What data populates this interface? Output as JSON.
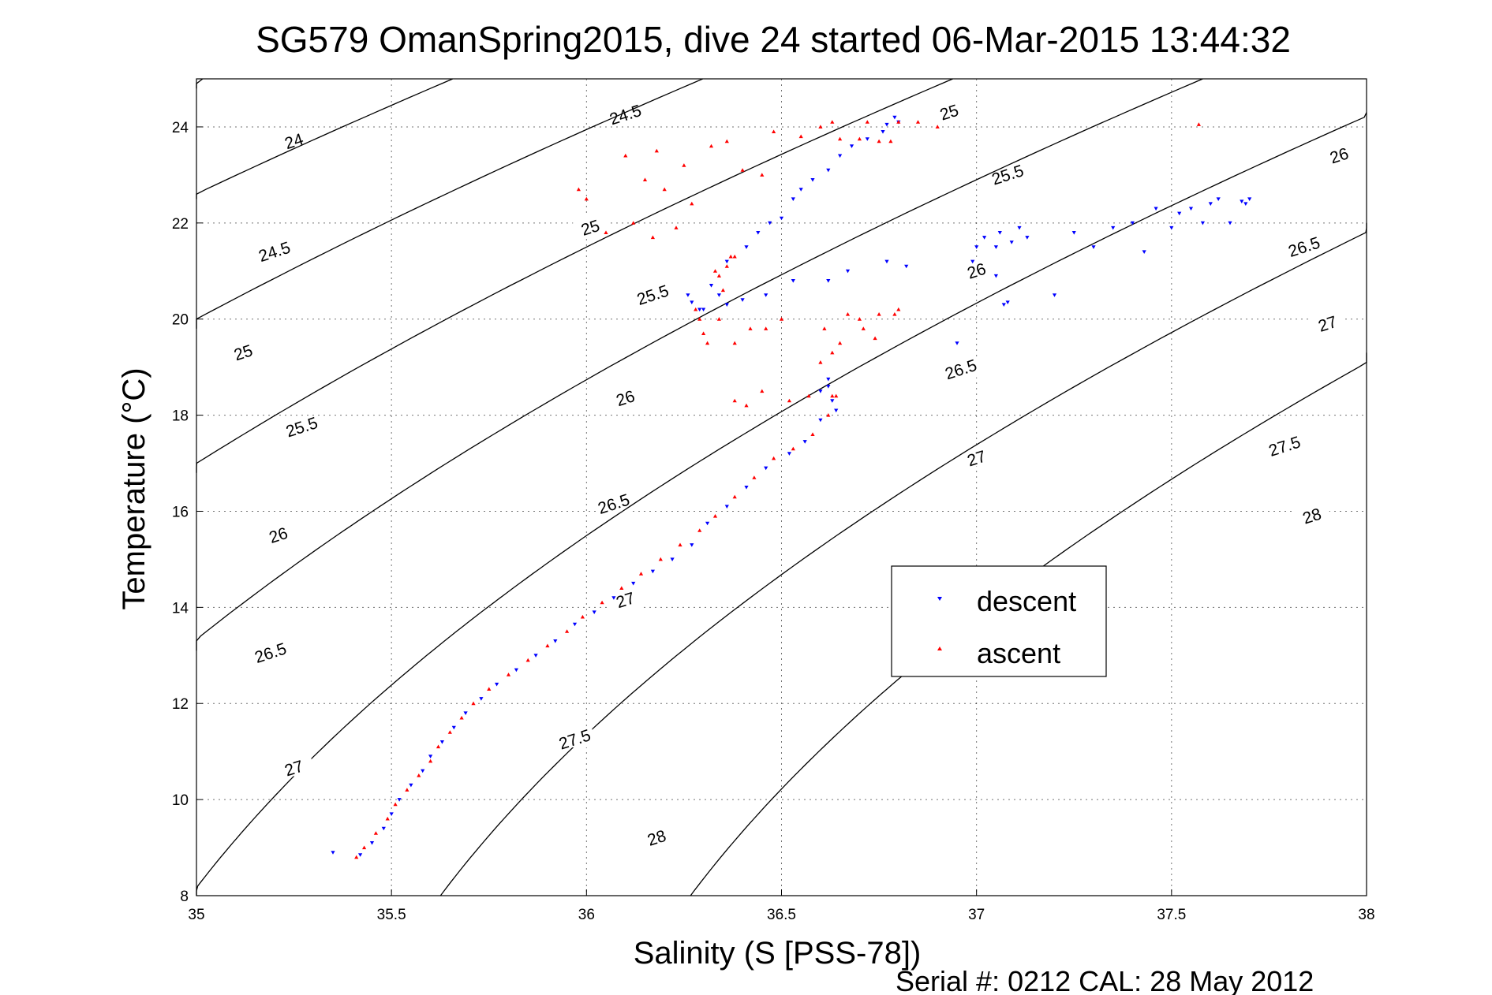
{
  "chart_data": {
    "type": "scatter",
    "title": "SG579 OmanSpring2015, dive 24 started 06-Mar-2015 13:44:32",
    "xlabel": "Salinity (S [PSS-78])",
    "ylabel": "Temperature (°C)",
    "xlim": [
      35,
      38
    ],
    "ylim": [
      8,
      25
    ],
    "xticks": [
      "35",
      "35.5",
      "36",
      "36.5",
      "37",
      "37.5",
      "38"
    ],
    "yticks": [
      "8",
      "10",
      "12",
      "14",
      "16",
      "18",
      "20",
      "22",
      "24"
    ],
    "grid": true,
    "legend_position": "center-right",
    "legend": [
      {
        "label": "descent",
        "marker": "triangle-down",
        "color": "#0000ff"
      },
      {
        "label": "ascent",
        "marker": "triangle-up",
        "color": "#ff0000"
      }
    ],
    "density_contours": {
      "labels": [
        "24",
        "24.5",
        "25",
        "25.5",
        "26",
        "26.5",
        "27",
        "27.5",
        "28"
      ],
      "color": "#000000",
      "note_values": [
        24,
        24.5,
        25,
        25.5,
        26,
        26.5,
        27,
        27.5,
        28
      ]
    },
    "series": [
      {
        "name": "descent",
        "color": "#0000ff",
        "marker": "triangle-down",
        "points": [
          [
            35.35,
            8.9
          ],
          [
            35.42,
            8.85
          ],
          [
            35.45,
            9.1
          ],
          [
            35.48,
            9.4
          ],
          [
            35.5,
            9.7
          ],
          [
            35.52,
            10.0
          ],
          [
            35.55,
            10.3
          ],
          [
            35.58,
            10.6
          ],
          [
            35.6,
            10.9
          ],
          [
            35.63,
            11.2
          ],
          [
            35.66,
            11.5
          ],
          [
            35.69,
            11.8
          ],
          [
            35.73,
            12.1
          ],
          [
            35.77,
            12.4
          ],
          [
            35.82,
            12.7
          ],
          [
            35.87,
            13.0
          ],
          [
            35.92,
            13.3
          ],
          [
            35.97,
            13.65
          ],
          [
            36.02,
            13.9
          ],
          [
            36.07,
            14.2
          ],
          [
            36.12,
            14.5
          ],
          [
            36.17,
            14.75
          ],
          [
            36.22,
            15.0
          ],
          [
            36.27,
            15.3
          ],
          [
            36.31,
            15.75
          ],
          [
            36.36,
            16.1
          ],
          [
            36.41,
            16.5
          ],
          [
            36.46,
            16.9
          ],
          [
            36.52,
            17.2
          ],
          [
            36.56,
            17.45
          ],
          [
            36.6,
            17.9
          ],
          [
            36.63,
            18.3
          ],
          [
            36.62,
            18.6
          ],
          [
            36.64,
            18.1
          ],
          [
            36.6,
            18.5
          ],
          [
            36.62,
            18.75
          ],
          [
            36.26,
            20.5
          ],
          [
            36.27,
            20.35
          ],
          [
            36.29,
            20.2
          ],
          [
            36.3,
            20.2
          ],
          [
            36.36,
            20.3
          ],
          [
            36.4,
            20.4
          ],
          [
            36.46,
            20.5
          ],
          [
            36.34,
            20.5
          ],
          [
            36.32,
            20.7
          ],
          [
            36.36,
            21.2
          ],
          [
            36.41,
            21.5
          ],
          [
            36.44,
            21.8
          ],
          [
            36.47,
            22.0
          ],
          [
            36.5,
            22.1
          ],
          [
            36.53,
            22.5
          ],
          [
            36.55,
            22.7
          ],
          [
            36.58,
            22.9
          ],
          [
            36.62,
            23.1
          ],
          [
            36.65,
            23.4
          ],
          [
            36.68,
            23.6
          ],
          [
            36.72,
            23.75
          ],
          [
            36.76,
            23.9
          ],
          [
            36.8,
            24.1
          ],
          [
            36.79,
            24.2
          ],
          [
            36.77,
            24.05
          ],
          [
            36.53,
            20.8
          ],
          [
            36.62,
            20.8
          ],
          [
            36.67,
            21.0
          ],
          [
            36.77,
            21.2
          ],
          [
            36.82,
            21.1
          ],
          [
            36.95,
            19.5
          ],
          [
            36.99,
            21.2
          ],
          [
            37.0,
            21.5
          ],
          [
            37.02,
            21.7
          ],
          [
            37.05,
            21.5
          ],
          [
            37.06,
            21.8
          ],
          [
            37.09,
            21.6
          ],
          [
            37.11,
            21.9
          ],
          [
            37.13,
            21.7
          ],
          [
            37.2,
            20.5
          ],
          [
            37.07,
            20.3
          ],
          [
            37.05,
            20.9
          ],
          [
            37.08,
            20.35
          ],
          [
            37.25,
            21.8
          ],
          [
            37.3,
            21.5
          ],
          [
            37.35,
            21.9
          ],
          [
            37.4,
            22.0
          ],
          [
            37.43,
            21.4
          ],
          [
            37.46,
            22.3
          ],
          [
            37.5,
            21.9
          ],
          [
            37.52,
            22.2
          ],
          [
            37.55,
            22.3
          ],
          [
            37.58,
            22.0
          ],
          [
            37.6,
            22.4
          ],
          [
            37.65,
            22.0
          ],
          [
            37.68,
            22.45
          ],
          [
            37.7,
            22.5
          ],
          [
            37.69,
            22.4
          ],
          [
            37.62,
            22.5
          ]
        ]
      },
      {
        "name": "ascent",
        "color": "#ff0000",
        "marker": "triangle-up",
        "points": [
          [
            35.41,
            8.8
          ],
          [
            35.43,
            9.0
          ],
          [
            35.46,
            9.3
          ],
          [
            35.49,
            9.6
          ],
          [
            35.51,
            9.9
          ],
          [
            35.54,
            10.2
          ],
          [
            35.57,
            10.5
          ],
          [
            35.6,
            10.8
          ],
          [
            35.62,
            11.1
          ],
          [
            35.65,
            11.4
          ],
          [
            35.68,
            11.7
          ],
          [
            35.71,
            12.0
          ],
          [
            35.75,
            12.3
          ],
          [
            35.8,
            12.6
          ],
          [
            35.85,
            12.9
          ],
          [
            35.9,
            13.2
          ],
          [
            35.95,
            13.5
          ],
          [
            35.99,
            13.8
          ],
          [
            36.04,
            14.1
          ],
          [
            36.09,
            14.4
          ],
          [
            36.14,
            14.7
          ],
          [
            36.19,
            15.0
          ],
          [
            36.24,
            15.3
          ],
          [
            36.29,
            15.6
          ],
          [
            36.33,
            15.9
          ],
          [
            36.38,
            16.3
          ],
          [
            36.43,
            16.7
          ],
          [
            36.48,
            17.1
          ],
          [
            36.53,
            17.3
          ],
          [
            36.58,
            17.6
          ],
          [
            36.62,
            18.0
          ],
          [
            36.64,
            18.4
          ],
          [
            36.38,
            18.3
          ],
          [
            36.41,
            18.2
          ],
          [
            36.45,
            18.5
          ],
          [
            36.52,
            18.3
          ],
          [
            36.57,
            18.4
          ],
          [
            36.63,
            18.4
          ],
          [
            36.6,
            19.1
          ],
          [
            36.63,
            19.3
          ],
          [
            36.65,
            19.5
          ],
          [
            36.61,
            19.8
          ],
          [
            36.67,
            20.1
          ],
          [
            36.7,
            20.0
          ],
          [
            36.75,
            20.1
          ],
          [
            36.79,
            20.1
          ],
          [
            36.74,
            19.6
          ],
          [
            36.8,
            20.2
          ],
          [
            36.71,
            19.8
          ],
          [
            36.28,
            20.2
          ],
          [
            36.29,
            20.0
          ],
          [
            36.3,
            19.7
          ],
          [
            36.31,
            19.5
          ],
          [
            36.34,
            20.0
          ],
          [
            36.35,
            20.6
          ],
          [
            36.34,
            20.9
          ],
          [
            36.36,
            21.1
          ],
          [
            36.38,
            21.3
          ],
          [
            36.33,
            21.0
          ],
          [
            36.37,
            21.3
          ],
          [
            36.38,
            19.5
          ],
          [
            36.42,
            19.8
          ],
          [
            36.46,
            19.8
          ],
          [
            36.5,
            20.0
          ],
          [
            35.98,
            22.7
          ],
          [
            36.0,
            22.5
          ],
          [
            36.05,
            21.8
          ],
          [
            36.12,
            22.0
          ],
          [
            36.17,
            21.7
          ],
          [
            36.23,
            21.9
          ],
          [
            36.27,
            22.4
          ],
          [
            36.2,
            22.7
          ],
          [
            36.15,
            22.9
          ],
          [
            36.1,
            23.4
          ],
          [
            36.18,
            23.5
          ],
          [
            36.25,
            23.2
          ],
          [
            36.32,
            23.6
          ],
          [
            36.36,
            23.7
          ],
          [
            36.4,
            23.1
          ],
          [
            36.45,
            23.0
          ],
          [
            36.48,
            23.9
          ],
          [
            36.55,
            23.8
          ],
          [
            36.6,
            24.0
          ],
          [
            36.63,
            24.1
          ],
          [
            36.65,
            23.75
          ],
          [
            36.7,
            23.75
          ],
          [
            36.75,
            23.7
          ],
          [
            36.78,
            23.7
          ],
          [
            36.72,
            24.1
          ],
          [
            36.8,
            24.1
          ],
          [
            36.85,
            24.1
          ],
          [
            36.9,
            24.0
          ],
          [
            37.57,
            24.05
          ]
        ]
      }
    ]
  },
  "footer": {
    "serial": "Serial #: 0212  CAL: 28 May 2012"
  }
}
